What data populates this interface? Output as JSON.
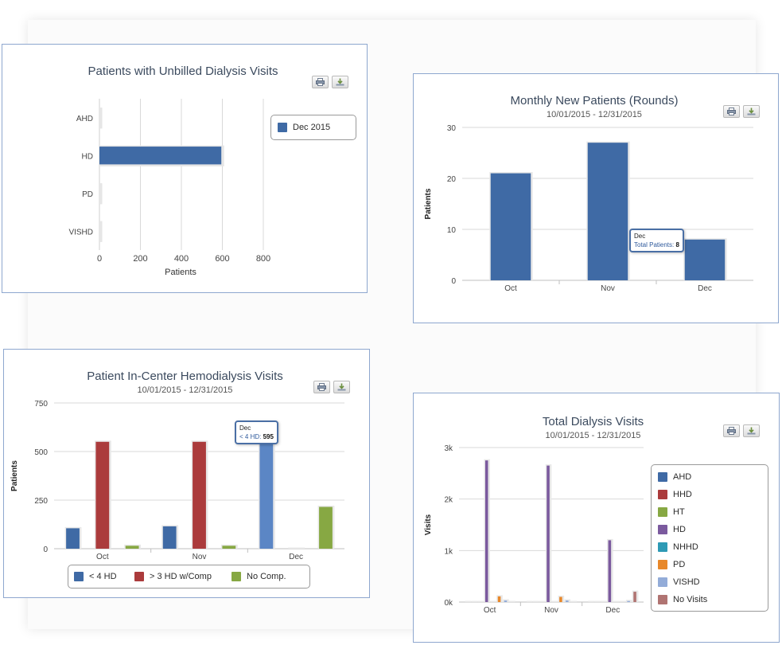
{
  "buttons": {
    "print_icon": "printer-icon",
    "download_icon": "download-icon"
  },
  "chart_data": [
    {
      "id": "p1",
      "type": "bar",
      "orientation": "horizontal",
      "title": "Patients with Unbilled Dialysis Visits",
      "subtitle": "",
      "categories": [
        "AHD",
        "HD",
        "PD",
        "VISHD"
      ],
      "series": [
        {
          "name": "Dec 2015",
          "color": "#3f6aa5",
          "values": [
            0,
            595,
            0,
            0
          ]
        }
      ],
      "xlabel": "Patients",
      "ylabel": "",
      "xlim": [
        0,
        800
      ],
      "ticks": [
        0,
        200,
        400,
        600,
        800
      ],
      "tick_labels": [
        "0",
        "200",
        "400",
        "600",
        "800"
      ],
      "grid": true,
      "legend": "right"
    },
    {
      "id": "p2",
      "type": "bar",
      "title": "Monthly New Patients (Rounds)",
      "subtitle": "10/01/2015 - 12/31/2015",
      "categories": [
        "Oct",
        "Nov",
        "Dec"
      ],
      "series": [
        {
          "name": "Total Patients",
          "color": "#3f6aa5",
          "values": [
            21,
            27,
            8
          ]
        }
      ],
      "xlabel": "",
      "ylabel": "Patients",
      "ylim": [
        0,
        30
      ],
      "ticks": [
        0,
        10,
        20,
        30
      ],
      "tick_labels": [
        "0",
        "10",
        "20",
        "30"
      ],
      "grid": true,
      "legend": "none",
      "tooltip": {
        "category": "Dec",
        "label": "Total Patients",
        "value": "8"
      }
    },
    {
      "id": "p3",
      "type": "bar",
      "title": "Patient In-Center Hemodialysis Visits",
      "subtitle": "10/01/2015 - 12/31/2015",
      "categories": [
        "Oct",
        "Nov",
        "Dec"
      ],
      "series": [
        {
          "name": "< 4 HD",
          "color": "#3f6aa5",
          "values": [
            105,
            115,
            595
          ]
        },
        {
          "name": "> 3 HD w/Comp",
          "color": "#ab3b3c",
          "values": [
            550,
            550,
            0
          ]
        },
        {
          "name": "No Comp.",
          "color": "#87a843",
          "values": [
            15,
            15,
            215
          ]
        }
      ],
      "xlabel": "",
      "ylabel": "Patients",
      "ylim": [
        0,
        750
      ],
      "ticks": [
        0,
        250,
        500,
        750
      ],
      "tick_labels": [
        "0",
        "250",
        "500",
        "750"
      ],
      "grid": true,
      "legend": "bottom",
      "tooltip": {
        "category": "Dec",
        "label": "< 4 HD",
        "value": "595"
      }
    },
    {
      "id": "p4",
      "type": "bar",
      "title": "Total Dialysis Visits",
      "subtitle": "10/01/2015 - 12/31/2015",
      "categories": [
        "Oct",
        "Nov",
        "Dec"
      ],
      "series": [
        {
          "name": "AHD",
          "color": "#3f6aa5",
          "values": [
            0,
            0,
            0
          ]
        },
        {
          "name": "HHD",
          "color": "#ab3b3c",
          "values": [
            0,
            0,
            0
          ]
        },
        {
          "name": "HT",
          "color": "#87a843",
          "values": [
            0,
            0,
            0
          ]
        },
        {
          "name": "HD",
          "color": "#7b5a9e",
          "values": [
            2750,
            2650,
            1200
          ]
        },
        {
          "name": "NHHD",
          "color": "#2e9ab5",
          "values": [
            0,
            0,
            0
          ]
        },
        {
          "name": "PD",
          "color": "#e8882a",
          "values": [
            110,
            100,
            0
          ]
        },
        {
          "name": "VISHD",
          "color": "#93acd8",
          "values": [
            30,
            30,
            20
          ]
        },
        {
          "name": "No Visits",
          "color": "#b07472",
          "values": [
            0,
            0,
            200
          ]
        }
      ],
      "xlabel": "",
      "ylabel": "Visits",
      "ylim": [
        0,
        3000
      ],
      "ticks": [
        0,
        1000,
        2000,
        3000
      ],
      "tick_labels": [
        "0k",
        "1k",
        "2k",
        "3k"
      ],
      "grid": true,
      "legend": "right"
    }
  ]
}
